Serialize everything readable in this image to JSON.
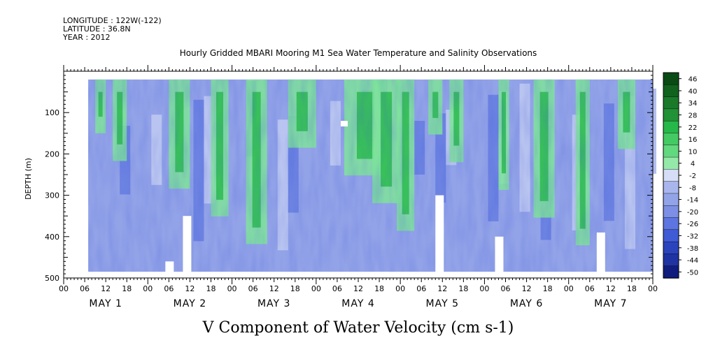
{
  "header": {
    "longitude": "LONGITUDE : 122W(-122)",
    "latitude": "LATITUDE : 36.8N",
    "year": "YEAR : 2012"
  },
  "chart_data": {
    "type": "heatmap",
    "title": "Hourly Gridded MBARI Mooring M1 Sea Water Temperature and Salinity Observations",
    "xlabel": "V Component of Water Velocity (cm s-1)",
    "ylabel": "DEPTH (m)",
    "ylim": [
      500,
      0
    ],
    "y_ticks": [
      100,
      200,
      300,
      400,
      500
    ],
    "x_tick_labels": [
      "00",
      "06",
      "12",
      "18",
      "00",
      "06",
      "12",
      "18",
      "00",
      "06",
      "12",
      "18",
      "00",
      "06",
      "12",
      "18",
      "00",
      "06",
      "12",
      "18",
      "00",
      "06",
      "12",
      "18",
      "00",
      "06",
      "12",
      "18",
      "00"
    ],
    "day_labels": [
      "MAY  1",
      "MAY  2",
      "MAY  3",
      "MAY  4",
      "MAY  5",
      "MAY  6",
      "MAY  7"
    ],
    "x_range_hours": [
      0,
      168
    ],
    "data_hours_start": 7,
    "colorbar": {
      "labels": [
        "46",
        "40",
        "34",
        "28",
        "22",
        "16",
        "10",
        "4",
        "-2",
        "-8",
        "-14",
        "-20",
        "-26",
        "-32",
        "-38",
        "-44",
        "-50"
      ],
      "min": -50,
      "max": 50,
      "colors": {
        "strong_positive": "#0a4a14",
        "positive": "#27b84a",
        "weak_positive": "#7fe39a",
        "near_zero": "#c9d2f3",
        "weak_negative": "#93a3e8",
        "negative": "#5d75e0",
        "strong_negative": "#1a2a8c"
      }
    },
    "green_bands_hours": [
      [
        9,
        12
      ],
      [
        14,
        18
      ],
      [
        30,
        36
      ],
      [
        42,
        47
      ],
      [
        52,
        58
      ],
      [
        64,
        72
      ],
      [
        80,
        92
      ],
      [
        88,
        96
      ],
      [
        95,
        100
      ],
      [
        104,
        108
      ],
      [
        110,
        114
      ],
      [
        124,
        127
      ],
      [
        134,
        140
      ],
      [
        146,
        150
      ],
      [
        158,
        163
      ]
    ],
    "bottom_gap_depths_by_day": [
      [
        29,
        460
      ],
      [
        34,
        350
      ],
      [
        106,
        300
      ],
      [
        123,
        400
      ],
      [
        152,
        390
      ]
    ]
  }
}
